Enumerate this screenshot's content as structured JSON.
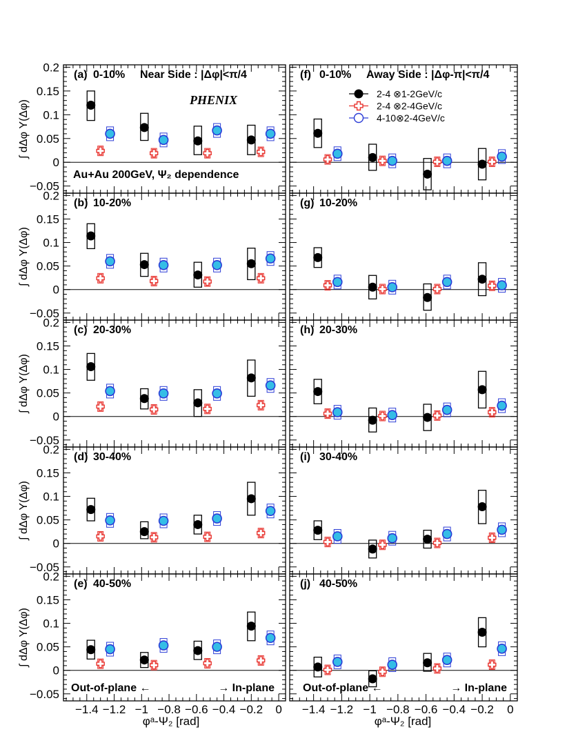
{
  "figure": {
    "ylabel": "∫ dΔφ Y(Δφ)",
    "xlabel": "φᵃ-Ψ₂ [rad]",
    "experiment": "PHENIX",
    "system_label": "Au+Au 200GeV, Ψ₂ dependence",
    "out_label": "Out-of-plane ←",
    "in_label": "→ In-plane"
  },
  "chart_data": {
    "type": "scatter",
    "x_ticks": [
      "−1.4",
      "−1.2",
      "−1",
      "−0.8",
      "−0.6",
      "−0.4",
      "−0.2",
      "0"
    ],
    "y_ticks": [
      "0.2",
      "0.15",
      "0.1",
      "0.05",
      "0",
      "−0.05"
    ],
    "x_range": [
      -1.57,
      0.05
    ],
    "y_range": [
      -0.065,
      0.205
    ],
    "legend": [
      "2-4 ⊗1-2GeV/c",
      "2-4 ⊗2-4GeV/c",
      "4-10⊗2-4GeV/c"
    ],
    "bins": [
      -1.37,
      -0.98,
      -0.59,
      -0.2
    ],
    "offsets": [
      0,
      0.07,
      0.14
    ],
    "series_styles": [
      "filled-circle",
      "open-cross",
      "open-circle-filled-cyan"
    ],
    "panels": [
      {
        "label": "(a)",
        "title": "0-10%",
        "side_label": "Near Side : |Δφ|<π/4",
        "col": 0,
        "row": 0,
        "series": [
          {
            "y": [
              0.12,
              0.073,
              0.045,
              0.047
            ],
            "sys": [
              [
                0.088,
                0.15
              ],
              [
                0.046,
                0.103
              ],
              [
                0.016,
                0.076
              ],
              [
                0.016,
                0.078
              ]
            ]
          },
          {
            "y": [
              0.024,
              0.019,
              0.019,
              0.022
            ]
          },
          {
            "y": [
              0.06,
              0.047,
              0.067,
              0.06
            ]
          }
        ]
      },
      {
        "label": "(b)",
        "title": "10-20%",
        "col": 0,
        "row": 1,
        "series": [
          {
            "y": [
              0.114,
              0.053,
              0.031,
              0.055
            ],
            "sys": [
              [
                0.087,
                0.14
              ],
              [
                0.028,
                0.077
              ],
              [
                0.005,
                0.058
              ],
              [
                0.021,
                0.088
              ]
            ]
          },
          {
            "y": [
              0.024,
              0.018,
              0.017,
              0.024
            ]
          },
          {
            "y": [
              0.06,
              0.052,
              0.052,
              0.066
            ]
          }
        ]
      },
      {
        "label": "(c)",
        "title": "20-30%",
        "col": 0,
        "row": 2,
        "series": [
          {
            "y": [
              0.106,
              0.038,
              0.029,
              0.082
            ],
            "sys": [
              [
                0.077,
                0.134
              ],
              [
                0.016,
                0.059
              ],
              [
                0.0,
                0.057
              ],
              [
                0.043,
                0.12
              ]
            ]
          },
          {
            "y": [
              0.021,
              0.015,
              0.016,
              0.024
            ]
          },
          {
            "y": [
              0.054,
              0.049,
              0.049,
              0.066
            ]
          }
        ]
      },
      {
        "label": "(d)",
        "title": "30-40%",
        "col": 0,
        "row": 3,
        "series": [
          {
            "y": [
              0.072,
              0.025,
              0.04,
              0.095
            ],
            "sys": [
              [
                0.048,
                0.096
              ],
              [
                0.01,
                0.046
              ],
              [
                0.02,
                0.06
              ],
              [
                0.06,
                0.13
              ]
            ]
          },
          {
            "y": [
              0.015,
              0.013,
              0.014,
              0.022
            ]
          },
          {
            "y": [
              0.049,
              0.048,
              0.053,
              0.069
            ]
          }
        ]
      },
      {
        "label": "(e)",
        "title": "40-50%",
        "col": 0,
        "row": 4,
        "series": [
          {
            "y": [
              0.044,
              0.022,
              0.042,
              0.094
            ],
            "sys": [
              [
                0.024,
                0.064
              ],
              [
                0.006,
                0.038
              ],
              [
                0.023,
                0.062
              ],
              [
                0.063,
                0.124
              ]
            ]
          },
          {
            "y": [
              0.014,
              0.011,
              0.015,
              0.021
            ]
          },
          {
            "y": [
              0.045,
              0.053,
              0.05,
              0.069
            ]
          }
        ]
      },
      {
        "label": "(f)",
        "title": "0-10%",
        "side_label": "Away Side : |Δφ-π|<π/4",
        "col": 1,
        "row": 0,
        "series": [
          {
            "y": [
              0.061,
              0.01,
              -0.025,
              -0.004
            ],
            "sys": [
              [
                0.031,
                0.091
              ],
              [
                -0.017,
                0.038
              ],
              [
                -0.058,
                0.008
              ],
              [
                -0.037,
                0.029
              ]
            ]
          },
          {
            "y": [
              0.006,
              0.003,
              0.001,
              0.001
            ]
          },
          {
            "y": [
              0.018,
              0.003,
              0.003,
              0.012
            ]
          }
        ]
      },
      {
        "label": "(g)",
        "title": "10-20%",
        "col": 1,
        "row": 1,
        "series": [
          {
            "y": [
              0.068,
              0.005,
              -0.017,
              0.022
            ],
            "sys": [
              [
                0.047,
                0.089
              ],
              [
                -0.02,
                0.03
              ],
              [
                -0.044,
                0.012
              ],
              [
                -0.013,
                0.057
              ]
            ]
          },
          {
            "y": [
              0.009,
              0.001,
              0.001,
              0.008
            ]
          },
          {
            "y": [
              0.016,
              0.005,
              0.016,
              0.009
            ]
          }
        ]
      },
      {
        "label": "(h)",
        "title": "20-30%",
        "col": 1,
        "row": 2,
        "series": [
          {
            "y": [
              0.053,
              -0.008,
              -0.002,
              0.057
            ],
            "sys": [
              [
                0.027,
                0.079
              ],
              [
                -0.033,
                0.018
              ],
              [
                -0.03,
                0.026
              ],
              [
                0.018,
                0.096
              ]
            ]
          },
          {
            "y": [
              0.006,
              0.001,
              0.002,
              0.009
            ]
          },
          {
            "y": [
              0.009,
              0.003,
              0.014,
              0.023
            ]
          }
        ]
      },
      {
        "label": "(i)",
        "title": "30-40%",
        "col": 1,
        "row": 3,
        "series": [
          {
            "y": [
              0.028,
              -0.012,
              0.009,
              0.078
            ],
            "sys": [
              [
                0.008,
                0.048
              ],
              [
                -0.031,
                0.007
              ],
              [
                -0.01,
                0.028
              ],
              [
                0.042,
                0.113
              ]
            ]
          },
          {
            "y": [
              0.003,
              -0.003,
              0.001,
              0.012
            ]
          },
          {
            "y": [
              0.015,
              0.011,
              0.02,
              0.029
            ]
          }
        ]
      },
      {
        "label": "(j)",
        "title": "40-50%",
        "col": 1,
        "row": 4,
        "series": [
          {
            "y": [
              0.007,
              -0.018,
              0.016,
              0.081
            ],
            "sys": [
              [
                -0.014,
                0.028
              ],
              [
                -0.035,
                -0.001
              ],
              [
                -0.002,
                0.036
              ],
              [
                0.05,
                0.112
              ]
            ]
          },
          {
            "y": [
              0.001,
              -0.003,
              0.004,
              0.012
            ]
          },
          {
            "y": [
              0.018,
              0.012,
              0.022,
              0.046
            ]
          }
        ]
      }
    ]
  },
  "colors": {
    "series1": "#000000",
    "series2": "#e8322d",
    "series3_edge": "#2a3bd6",
    "series3_fill": "#35bde6",
    "axis": "#000000"
  }
}
